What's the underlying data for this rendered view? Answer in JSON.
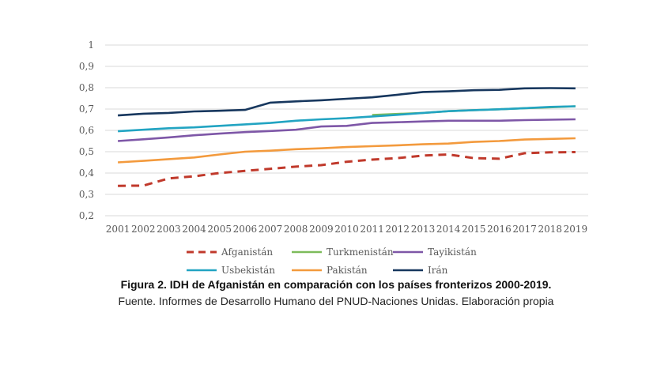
{
  "chart_data": {
    "type": "line",
    "title": "",
    "xlabel": "",
    "ylabel": "",
    "ylim": [
      0.2,
      1
    ],
    "yticks": [
      "0,2",
      "0,3",
      "0,4",
      "0,5",
      "0,6",
      "0,7",
      "0,8",
      "0,9",
      "1"
    ],
    "x": [
      "2001",
      "2002",
      "2003",
      "2004",
      "2005",
      "2006",
      "2007",
      "2008",
      "2009",
      "2010",
      "2011",
      "2012",
      "2013",
      "2014",
      "2015",
      "2016",
      "2017",
      "2018",
      "2019"
    ],
    "grid": true,
    "legend_position": "bottom",
    "series": [
      {
        "name": "Afganistán",
        "color": "#C0392B",
        "dash": true,
        "values": [
          0.34,
          0.341,
          0.375,
          0.385,
          0.4,
          0.41,
          0.42,
          0.43,
          0.437,
          0.453,
          0.463,
          0.47,
          0.482,
          0.487,
          0.47,
          0.467,
          0.493,
          0.497,
          0.498
        ]
      },
      {
        "name": "Turkmenistán",
        "color": "#7DBB5B",
        "dash": false,
        "start_index": 10,
        "values": [
          null,
          null,
          null,
          null,
          null,
          null,
          null,
          null,
          null,
          null,
          0.672,
          0.677,
          0.682,
          0.69,
          0.695,
          0.699,
          0.704,
          0.708,
          0.713
        ]
      },
      {
        "name": "Tayikistán",
        "color": "#7E57A7",
        "dash": false,
        "values": [
          0.55,
          0.558,
          0.567,
          0.577,
          0.585,
          0.592,
          0.597,
          0.603,
          0.618,
          0.621,
          0.635,
          0.638,
          0.642,
          0.645,
          0.645,
          0.645,
          0.648,
          0.65,
          0.652
        ]
      },
      {
        "name": "Usbekistán",
        "color": "#22A4C2",
        "dash": false,
        "values": [
          0.596,
          0.603,
          0.61,
          0.614,
          0.621,
          0.628,
          0.635,
          0.645,
          0.652,
          0.657,
          0.665,
          0.673,
          0.682,
          0.69,
          0.695,
          0.699,
          0.704,
          0.71,
          0.713
        ]
      },
      {
        "name": "Pakistán",
        "color": "#F39A3D",
        "dash": false,
        "values": [
          0.45,
          0.457,
          0.465,
          0.473,
          0.487,
          0.5,
          0.505,
          0.512,
          0.516,
          0.522,
          0.526,
          0.53,
          0.535,
          0.538,
          0.546,
          0.55,
          0.557,
          0.56,
          0.563
        ]
      },
      {
        "name": "Irán",
        "color": "#17375E",
        "dash": false,
        "values": [
          0.67,
          0.678,
          0.682,
          0.689,
          0.692,
          0.696,
          0.73,
          0.736,
          0.741,
          0.748,
          0.755,
          0.767,
          0.78,
          0.783,
          0.788,
          0.79,
          0.797,
          0.798,
          0.797
        ]
      }
    ]
  },
  "caption": {
    "title": "Figura 2. IDH de Afganistán en comparación con los países fronterizos 2000-2019.",
    "source": "Fuente. Informes de Desarrollo Humano del PNUD-Naciones Unidas. Elaboración propia"
  }
}
